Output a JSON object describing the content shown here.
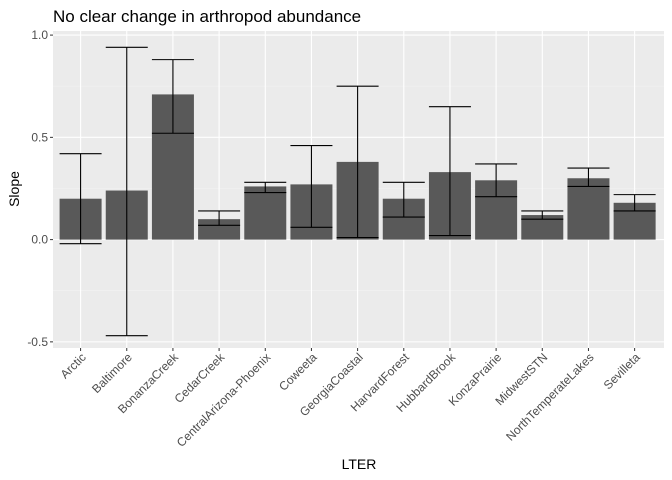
{
  "chart_data": {
    "type": "bar",
    "title": "No clear change in arthropod abundance",
    "xlabel": "LTER",
    "ylabel": "Slope",
    "ylim": [
      -0.53,
      1.02
    ],
    "yticks": [
      -0.5,
      0.0,
      0.5,
      1.0
    ],
    "ytick_labels": [
      "-0.5",
      "0.0",
      "0.5",
      "1.0"
    ],
    "grid": true,
    "legend": "none",
    "categories": [
      "Arctic",
      "Baltimore",
      "BonanzaCreek",
      "CedarCreek",
      "CentralArizona-Phoenix",
      "Coweeta",
      "GeorgiaCoastal",
      "HarvardForest",
      "HubbardBrook",
      "KonzaPrairie",
      "MidwestSTN",
      "NorthTemperateLakes",
      "Sevilleta"
    ],
    "values": [
      0.2,
      0.24,
      0.71,
      0.1,
      0.26,
      0.27,
      0.38,
      0.2,
      0.33,
      0.29,
      0.12,
      0.3,
      0.18
    ],
    "error_low": [
      -0.02,
      -0.47,
      0.52,
      0.07,
      0.23,
      0.06,
      0.01,
      0.11,
      0.02,
      0.21,
      0.1,
      0.26,
      0.14
    ],
    "error_high": [
      0.42,
      0.94,
      0.88,
      0.14,
      0.28,
      0.46,
      0.75,
      0.28,
      0.65,
      0.37,
      0.14,
      0.35,
      0.22
    ],
    "colors": {
      "bar": "#595959",
      "panel": "#ebebeb",
      "grid_major": "#ffffff",
      "grid_minor": "#f2f2f2",
      "errorbar": "#000000",
      "tick_text": "#4d4d4d"
    }
  }
}
